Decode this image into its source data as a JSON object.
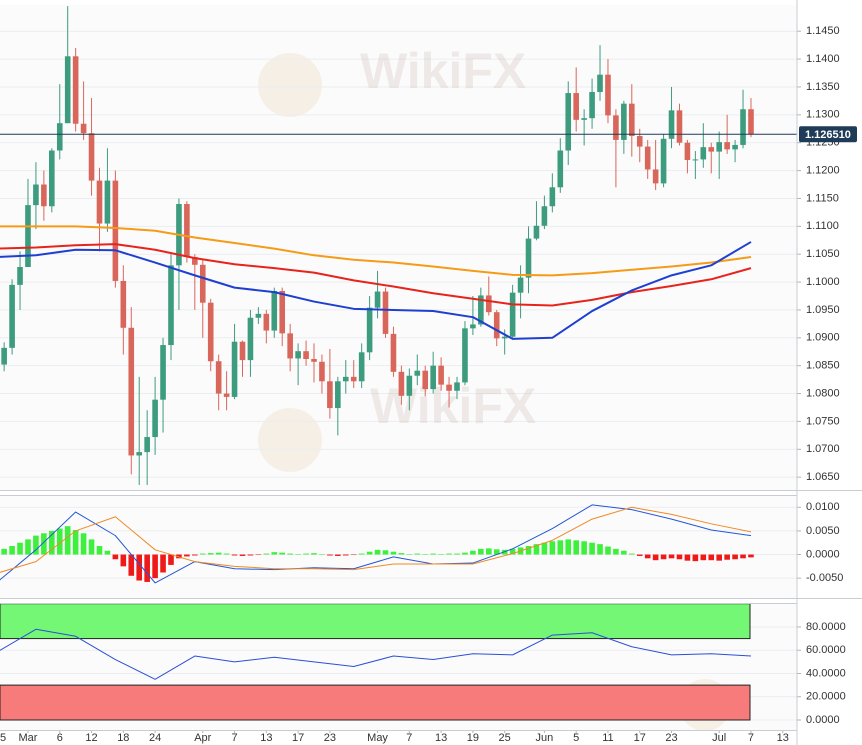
{
  "chart_data": [
    {
      "type": "candlestick",
      "categories": [
        "5",
        null,
        null,
        null,
        "Mar",
        null,
        null,
        null,
        "6",
        null,
        null,
        null,
        "12",
        null,
        null,
        null,
        "18",
        null,
        null,
        null,
        "24",
        null,
        null,
        null,
        null,
        null,
        "Apr",
        null,
        null,
        null,
        "7",
        null,
        null,
        null,
        "13",
        null,
        null,
        null,
        "17",
        null,
        null,
        null,
        "23",
        null,
        null,
        null,
        null,
        null,
        "May",
        null,
        null,
        null,
        "7",
        null,
        null,
        null,
        "13",
        null,
        null,
        null,
        "19",
        null,
        null,
        null,
        "25",
        null,
        null,
        null,
        null,
        "Jun",
        null,
        null,
        null,
        "5",
        null,
        null,
        null,
        "11",
        null,
        null,
        null,
        "17",
        null,
        null,
        null,
        "23",
        null,
        null,
        null,
        null,
        null,
        "Jul",
        null,
        null,
        null,
        "7",
        null,
        null,
        null,
        "13"
      ],
      "open": [
        1.088,
        1.0852,
        1.0882,
        1.0995,
        1.1027,
        1.1138,
        1.1175,
        1.1136,
        1.1236,
        1.1285,
        1.1405,
        1.1284,
        1.1267,
        1.1182,
        1.1105,
        1.1182,
        1.1002,
        1.0918,
        1.0689,
        1.0695,
        1.0722,
        1.0789,
        1.0887,
        1.103,
        1.114,
        1.1045,
        1.1031,
        1.0963,
        1.0858,
        1.08,
        1.0794,
        1.0893,
        1.086,
        1.0936,
        1.0943,
        1.0913,
        1.0984,
        1.0908,
        1.0863,
        1.0876,
        1.0862,
        1.0857,
        1.0822,
        1.0774,
        1.0822,
        1.083,
        1.0822,
        1.0874,
        1.0954,
        1.0983,
        1.0907,
        1.0839,
        1.0796,
        1.0832,
        1.0841,
        1.0808,
        1.085,
        1.0816,
        1.0805,
        1.082,
        1.0917,
        1.0924,
        1.0976,
        1.0946,
        1.0899,
        1.0902,
        1.0981,
        1.1008,
        1.1078,
        1.1101,
        1.1136,
        1.117,
        1.1236,
        1.1339,
        1.1291,
        1.1294,
        1.1341,
        1.1372,
        1.1299,
        1.1255,
        1.132,
        1.1262,
        1.1243,
        1.1202,
        1.1177,
        1.1257,
        1.1308,
        1.125,
        1.1219,
        1.122,
        1.1242,
        1.1234,
        1.1251,
        1.1238,
        1.1246,
        1.131,
        null,
        null,
        null,
        null
      ],
      "high": [
        1.089,
        1.0892,
        1.1005,
        1.1055,
        1.1185,
        1.1215,
        1.12,
        1.124,
        1.1355,
        1.1495,
        1.142,
        1.136,
        1.133,
        1.1205,
        1.124,
        1.12,
        1.103,
        1.0955,
        1.083,
        1.077,
        1.083,
        1.09,
        1.105,
        1.115,
        1.1145,
        1.105,
        1.104,
        1.097,
        1.087,
        1.084,
        1.0925,
        1.0895,
        1.095,
        1.0955,
        1.095,
        1.099,
        1.099,
        1.0925,
        1.089,
        1.0895,
        1.089,
        1.087,
        1.088,
        1.083,
        1.086,
        1.086,
        1.089,
        1.0975,
        1.102,
        1.099,
        1.092,
        1.085,
        1.0845,
        1.087,
        1.085,
        1.0875,
        1.0865,
        1.083,
        1.083,
        1.093,
        1.0975,
        1.099,
        1.101,
        1.095,
        1.0915,
        1.0995,
        1.103,
        1.11,
        1.1145,
        1.1155,
        1.1195,
        1.1258,
        1.136,
        1.1385,
        1.131,
        1.1365,
        1.1425,
        1.14,
        1.131,
        1.1325,
        1.1355,
        1.1275,
        1.1255,
        1.1255,
        1.1265,
        1.135,
        1.132,
        1.1255,
        1.1235,
        1.1285,
        1.125,
        1.127,
        1.13,
        1.1255,
        1.1345,
        1.133,
        null,
        null,
        null,
        null
      ],
      "low": [
        1.084,
        1.084,
        1.087,
        1.095,
        1.103,
        1.1095,
        1.111,
        1.1125,
        1.122,
        1.1285,
        1.127,
        1.1255,
        1.1155,
        1.1055,
        1.109,
        1.099,
        1.087,
        1.0655,
        1.0636,
        1.0636,
        1.069,
        1.073,
        1.086,
        1.095,
        1.1035,
        1.095,
        1.09,
        1.084,
        1.077,
        1.077,
        1.079,
        1.083,
        1.083,
        1.0925,
        1.089,
        1.09,
        1.0885,
        1.084,
        1.0815,
        1.085,
        1.082,
        1.08,
        1.0755,
        1.0725,
        1.08,
        1.081,
        1.081,
        1.086,
        1.0935,
        1.09,
        1.083,
        1.078,
        1.077,
        1.0815,
        1.0795,
        1.08,
        1.0805,
        1.0775,
        1.079,
        1.0815,
        1.0905,
        1.092,
        1.094,
        1.0885,
        1.087,
        1.09,
        1.0935,
        1.098,
        1.1075,
        1.1095,
        1.1125,
        1.116,
        1.121,
        1.127,
        1.1245,
        1.1275,
        1.1325,
        1.1285,
        1.117,
        1.123,
        1.1225,
        1.1215,
        1.1185,
        1.1165,
        1.117,
        1.124,
        1.1245,
        1.1195,
        1.1185,
        1.1205,
        1.1195,
        1.1185,
        1.123,
        1.1215,
        1.124,
        1.126,
        null,
        null,
        null,
        null
      ],
      "close": [
        1.0852,
        1.0882,
        1.0995,
        1.1027,
        1.1138,
        1.1175,
        1.1136,
        1.1236,
        1.1285,
        1.1405,
        1.1284,
        1.1267,
        1.1182,
        1.1105,
        1.1182,
        1.1002,
        1.0918,
        1.0689,
        1.0695,
        1.0722,
        1.0789,
        1.0887,
        1.103,
        1.114,
        1.1045,
        1.1031,
        1.0963,
        1.0858,
        1.08,
        1.0794,
        1.0893,
        1.086,
        1.0936,
        1.0943,
        1.0913,
        1.0984,
        1.0908,
        1.0863,
        1.0876,
        1.0862,
        1.0857,
        1.0822,
        1.0774,
        1.0822,
        1.083,
        1.0822,
        1.0874,
        1.0954,
        1.0983,
        1.0907,
        1.0839,
        1.0796,
        1.0832,
        1.0841,
        1.0808,
        1.085,
        1.0816,
        1.0805,
        1.082,
        1.0917,
        1.0924,
        1.0976,
        1.0946,
        1.0899,
        1.0902,
        1.0981,
        1.1008,
        1.1078,
        1.1101,
        1.1136,
        1.117,
        1.1236,
        1.1339,
        1.1291,
        1.1294,
        1.1341,
        1.1372,
        1.1299,
        1.1255,
        1.132,
        1.1262,
        1.1243,
        1.1202,
        1.1177,
        1.1257,
        1.1308,
        1.125,
        1.1219,
        1.122,
        1.1242,
        1.1234,
        1.1251,
        1.1238,
        1.1246,
        1.131,
        1.12651,
        null,
        null,
        null,
        null
      ],
      "up_color": "#3d9b7e",
      "down_color": "#d9665a",
      "ylim": [
        1.0627,
        1.1497
      ],
      "yticks": [
        {
          "value": 1.065,
          "label": "1.0650"
        },
        {
          "value": 1.07,
          "label": "1.0700"
        },
        {
          "value": 1.075,
          "label": "1.0750"
        },
        {
          "value": 1.08,
          "label": "1.0800"
        },
        {
          "value": 1.085,
          "label": "1.0850"
        },
        {
          "value": 1.09,
          "label": "1.0900"
        },
        {
          "value": 1.095,
          "label": "1.0950"
        },
        {
          "value": 1.1,
          "label": "1.1000"
        },
        {
          "value": 1.105,
          "label": "1.1050"
        },
        {
          "value": 1.11,
          "label": "1.1100"
        },
        {
          "value": 1.115,
          "label": "1.1150"
        },
        {
          "value": 1.12,
          "label": "1.1200"
        },
        {
          "value": 1.125,
          "label": "1.1250"
        },
        {
          "value": 1.13,
          "label": "1.1300"
        },
        {
          "value": 1.135,
          "label": "1.1350"
        },
        {
          "value": 1.14,
          "label": "1.1400"
        },
        {
          "value": 1.145,
          "label": "1.1450"
        }
      ],
      "grid": true,
      "last_price": {
        "value": 1.12651,
        "label": "1.126510",
        "color": "#1f3b57"
      },
      "watermark": "WikiFX",
      "series": [
        {
          "color": "#f59b16",
          "x": [
            0,
            5,
            10,
            15,
            20,
            25,
            30,
            35,
            40,
            45,
            50,
            55,
            60,
            65,
            70,
            75,
            80,
            85,
            90,
            95
          ],
          "values": [
            1.11,
            1.11,
            1.11,
            1.1097,
            1.1092,
            1.108,
            1.107,
            1.106,
            1.1048,
            1.104,
            1.1035,
            1.1028,
            1.102,
            1.1013,
            1.1012,
            1.1016,
            1.1022,
            1.1028,
            1.1035,
            1.1045
          ]
        },
        {
          "color": "#e8231c",
          "x": [
            0,
            5,
            10,
            15,
            20,
            25,
            30,
            35,
            40,
            45,
            50,
            55,
            60,
            65,
            70,
            75,
            80,
            85,
            90,
            95
          ],
          "values": [
            1.106,
            1.1062,
            1.1066,
            1.1068,
            1.1058,
            1.1043,
            1.1032,
            1.1025,
            1.1017,
            1.1003,
            1.0992,
            1.098,
            1.097,
            1.096,
            1.0958,
            1.0968,
            1.0982,
            1.0993,
            1.1005,
            1.1025
          ]
        },
        {
          "color": "#1f3fd1",
          "x": [
            0,
            5,
            10,
            15,
            20,
            25,
            30,
            35,
            40,
            45,
            50,
            55,
            60,
            65,
            70,
            75,
            80,
            85,
            90,
            95
          ],
          "values": [
            1.1045,
            1.1048,
            1.1058,
            1.1057,
            1.1035,
            1.1012,
            1.099,
            1.0982,
            1.0965,
            1.0952,
            1.095,
            1.0948,
            1.0937,
            1.0898,
            1.09,
            1.0948,
            1.0985,
            1.1012,
            1.103,
            1.1072
          ]
        }
      ]
    },
    {
      "type": "macd",
      "ylim": [
        -0.0092,
        0.0126
      ],
      "yticks": [
        {
          "value": -0.005,
          "label": "-0.0050"
        },
        {
          "value": 0,
          "label": "0.0000"
        },
        {
          "value": 0.005,
          "label": "0.0050"
        },
        {
          "value": 0.01,
          "label": "0.0100"
        }
      ],
      "grid": true,
      "histogram": {
        "up_color": "#3cf03c",
        "down_color": "#ee1a1a",
        "values": [
          0.0008,
          0.0012,
          0.0018,
          0.0025,
          0.0032,
          0.004,
          0.0045,
          0.005,
          0.0055,
          0.006,
          0.0052,
          0.0045,
          0.0032,
          0.0018,
          0.0008,
          -0.001,
          -0.0025,
          -0.0045,
          -0.0055,
          -0.0058,
          -0.005,
          -0.0038,
          -0.0022,
          -0.0008,
          -0.0004,
          -0.0002,
          0.0002,
          0.0003,
          0.0004,
          0.0002,
          -0.0002,
          -0.0003,
          -0.0002,
          -0.0001,
          0.0002,
          0.0005,
          0.0004,
          0.0002,
          0.0001,
          0.0002,
          0.0003,
          0.0001,
          -0.0002,
          -0.0003,
          -0.0002,
          -0.0001,
          0.0002,
          0.0006,
          0.001,
          0.0009,
          0.0006,
          0.0003,
          0.0001,
          0.0002,
          0.0001,
          0.0002,
          0.0001,
          0.0002,
          0.0002,
          0.0004,
          0.0008,
          0.0012,
          0.0013,
          0.0011,
          0.001,
          0.0012,
          0.0015,
          0.0018,
          0.0022,
          0.0025,
          0.0028,
          0.003,
          0.0032,
          0.003,
          0.0028,
          0.0025,
          0.0022,
          0.0017,
          0.0012,
          0.0008,
          0.0002,
          -0.0003,
          -0.0008,
          -0.0012,
          -0.001,
          -0.0008,
          -0.001,
          -0.0013,
          -0.0014,
          -0.0012,
          -0.0012,
          -0.0013,
          -0.0011,
          -0.001,
          -0.0008,
          -0.0006,
          null,
          null,
          null,
          null
        ]
      },
      "series": [
        {
          "color": "#2457d6",
          "x": [
            0,
            5,
            10,
            15,
            20,
            25,
            30,
            35,
            40,
            45,
            50,
            55,
            60,
            65,
            70,
            75,
            80,
            85,
            90,
            95
          ],
          "values": [
            -0.006,
            0.001,
            0.009,
            0.004,
            -0.006,
            -0.0015,
            -0.003,
            -0.0032,
            -0.0028,
            -0.003,
            -0.0005,
            -0.002,
            -0.0018,
            0.0012,
            0.0055,
            0.0105,
            0.0095,
            0.0075,
            0.0052,
            0.004
          ]
        },
        {
          "color": "#f08a24",
          "x": [
            0,
            5,
            10,
            15,
            20,
            25,
            30,
            35,
            40,
            45,
            50,
            55,
            60,
            65,
            70,
            75,
            80,
            85,
            90,
            95
          ],
          "values": [
            -0.004,
            -0.0015,
            0.005,
            0.008,
            0.001,
            -0.0015,
            -0.0025,
            -0.003,
            -0.003,
            -0.0032,
            -0.002,
            -0.002,
            -0.002,
            0.0002,
            0.003,
            0.0075,
            0.01,
            0.0085,
            0.0065,
            0.0048
          ]
        }
      ]
    },
    {
      "type": "rsi",
      "ylim": [
        -8.6,
        100.6
      ],
      "yticks": [
        {
          "value": 0,
          "label": "0.0000"
        },
        {
          "value": 20,
          "label": "20.0000"
        },
        {
          "value": 40,
          "label": "40.0000"
        },
        {
          "value": 60,
          "label": "60.0000"
        },
        {
          "value": 80,
          "label": "80.0000"
        }
      ],
      "grid": true,
      "bands": [
        {
          "from": 70,
          "to": 100,
          "color": "#74f774"
        },
        {
          "from": 0,
          "to": 30,
          "color": "#f77b7b"
        }
      ],
      "series": [
        {
          "color": "#2b4fd6",
          "x": [
            0,
            5,
            10,
            15,
            20,
            25,
            30,
            35,
            40,
            45,
            50,
            55,
            60,
            65,
            70,
            75,
            80,
            85,
            90,
            95
          ],
          "values": [
            58,
            78,
            72,
            52,
            35,
            55,
            50,
            54,
            50,
            46,
            55,
            52,
            57,
            56,
            73,
            75,
            63,
            56,
            57,
            55
          ]
        }
      ]
    }
  ]
}
